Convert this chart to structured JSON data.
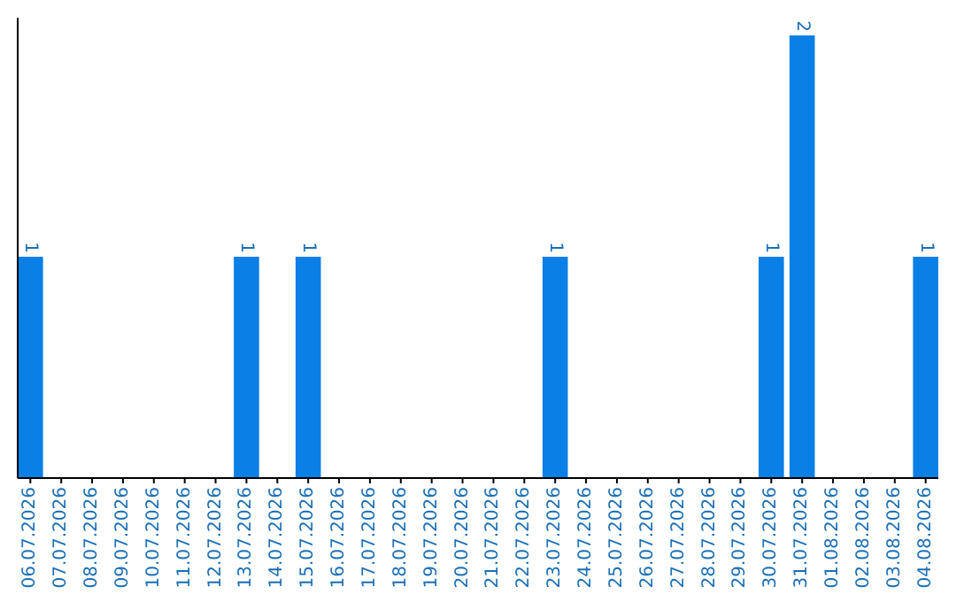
{
  "chart_data": {
    "type": "bar",
    "categories": [
      "06.07.2026",
      "07.07.2026",
      "08.07.2026",
      "09.07.2026",
      "10.07.2026",
      "11.07.2026",
      "12.07.2026",
      "13.07.2026",
      "14.07.2026",
      "15.07.2026",
      "16.07.2026",
      "17.07.2026",
      "18.07.2026",
      "19.07.2026",
      "20.07.2026",
      "21.07.2026",
      "22.07.2026",
      "23.07.2026",
      "24.07.2026",
      "25.07.2026",
      "26.07.2026",
      "27.07.2026",
      "28.07.2026",
      "29.07.2026",
      "30.07.2026",
      "31.07.2026",
      "01.08.2026",
      "02.08.2026",
      "03.08.2026",
      "04.08.2026"
    ],
    "values": [
      1,
      0,
      0,
      0,
      0,
      0,
      0,
      1,
      0,
      1,
      0,
      0,
      0,
      0,
      0,
      0,
      0,
      1,
      0,
      0,
      0,
      0,
      0,
      0,
      1,
      2,
      0,
      0,
      0,
      1
    ],
    "value_labels": [
      "1",
      null,
      null,
      null,
      null,
      null,
      null,
      "1",
      null,
      "1",
      null,
      null,
      null,
      null,
      null,
      null,
      null,
      "1",
      null,
      null,
      null,
      null,
      null,
      null,
      "1",
      "2",
      null,
      null,
      null,
      "1"
    ],
    "color": "#0a7fe6"
  }
}
